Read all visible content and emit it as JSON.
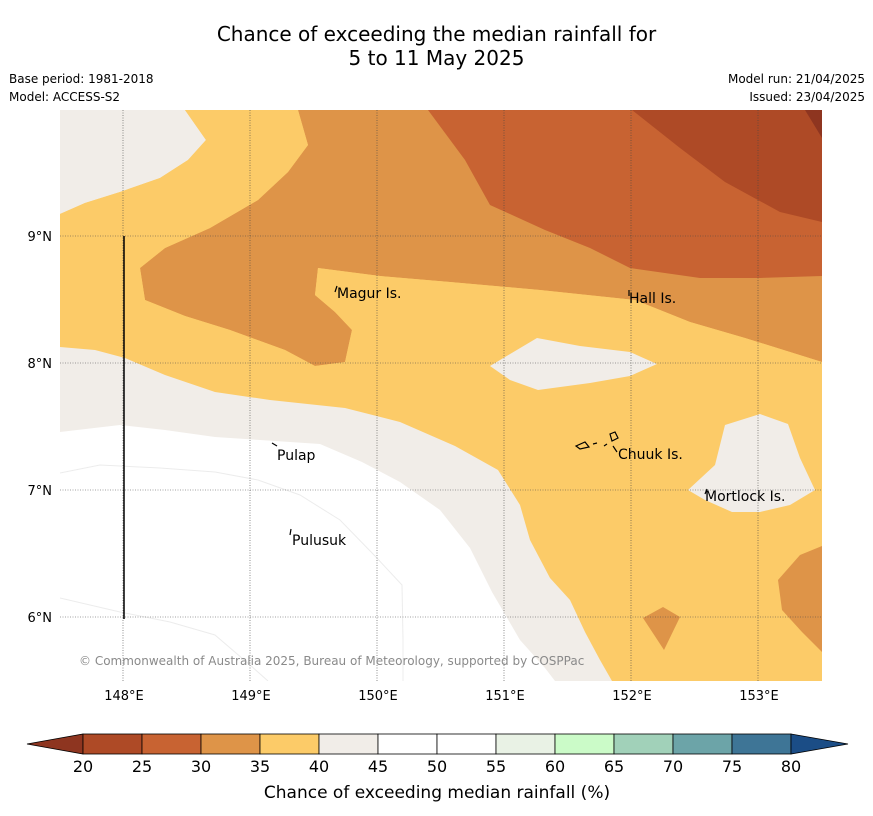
{
  "title": {
    "line1": "Chance of exceeding the median rainfall for",
    "line2": "5 to 11 May 2025"
  },
  "meta": {
    "base_period": "Base period: 1981-2018",
    "model": "Model: ACCESS-S2",
    "model_run": "Model run: 21/04/2025",
    "issued": "Issued: 23/04/2025"
  },
  "map": {
    "lon_ticks": [
      "148°E",
      "149°E",
      "150°E",
      "151°E",
      "152°E",
      "153°E"
    ],
    "lat_ticks": [
      "9°N",
      "8°N",
      "7°N",
      "6°N"
    ],
    "places": [
      {
        "name": "Magur Is."
      },
      {
        "name": "Hall Is."
      },
      {
        "name": "Pulap"
      },
      {
        "name": "Chuuk Is."
      },
      {
        "name": "Mortlock Is."
      },
      {
        "name": "Pulusuk"
      }
    ],
    "copyright": "© Commonwealth of Australia 2025, Bureau of Meteorology, supported by COSPPac"
  },
  "colorbar": {
    "ticks": [
      "20",
      "25",
      "30",
      "35",
      "40",
      "45",
      "50",
      "55",
      "60",
      "65",
      "70",
      "75",
      "80"
    ],
    "colors": [
      "#ae4a26",
      "#c86332",
      "#de9448",
      "#fccb68",
      "#f1ede8",
      "#ffffff",
      "#ffffff",
      "#e9f2e5",
      "#cbfbc8",
      "#a1d1b9",
      "#6ca4a8",
      "#3e7596"
    ],
    "under_color": "#8e3520",
    "over_color": "#1b4d86",
    "label": "Chance of exceeding median rainfall (%)"
  }
}
